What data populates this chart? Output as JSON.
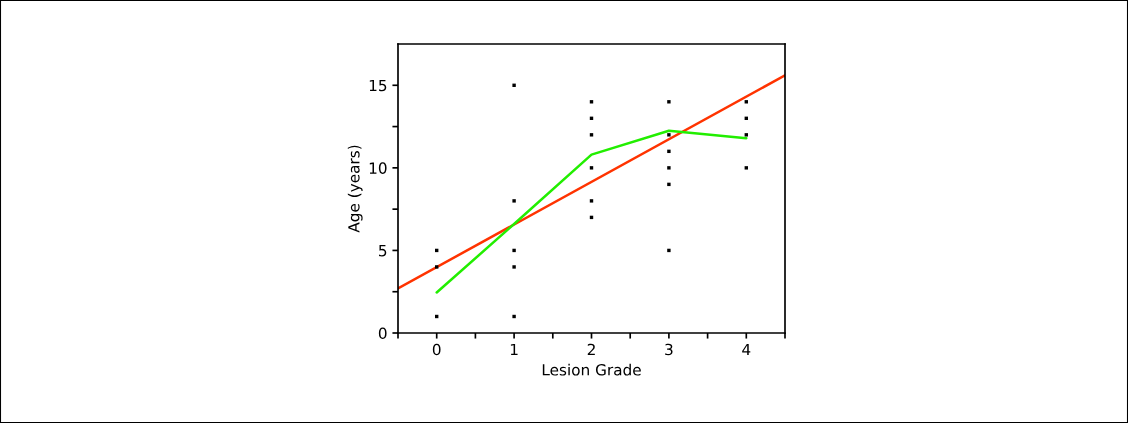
{
  "chart_data": {
    "type": "scatter",
    "xlabel": "Lesion Grade",
    "ylabel": "Age (years)",
    "xlim": [
      -0.5,
      4.5
    ],
    "ylim": [
      0,
      17.5
    ],
    "xticks": [
      {
        "value": -0.5,
        "label": null
      },
      0,
      {
        "value": 0.5,
        "label": null
      },
      1,
      {
        "value": 1.5,
        "label": null
      },
      2,
      {
        "value": 2.5,
        "label": null
      },
      3,
      {
        "value": 3.5,
        "label": null
      },
      4,
      {
        "value": 4.5,
        "label": null
      }
    ],
    "yticks": [
      0,
      {
        "value": 2.5,
        "label": null
      },
      5,
      {
        "value": 7.5,
        "label": null
      },
      10,
      {
        "value": 12.5,
        "label": null
      },
      15
    ],
    "grid": false,
    "legend": false,
    "series": [
      {
        "marker": "square",
        "color": "#000000",
        "x": [
          0,
          0,
          0,
          1,
          1,
          1,
          1,
          1,
          2,
          2,
          2,
          2,
          2,
          2,
          3,
          3,
          3,
          3,
          3,
          3,
          4,
          4,
          4,
          4
        ],
        "values": [
          5,
          4,
          1,
          15,
          8,
          5,
          4,
          1,
          14,
          13,
          12,
          10,
          8,
          7,
          14,
          12,
          11,
          10,
          9,
          5,
          14,
          13,
          12,
          10
        ]
      },
      {
        "type": "line",
        "color": "#ff3300",
        "x": [
          -0.5,
          4.5
        ],
        "values": [
          2.7,
          15.6
        ]
      },
      {
        "type": "line",
        "color": "#22ee00",
        "x": [
          0,
          1,
          2,
          3,
          4
        ],
        "values": [
          2.45,
          6.6,
          10.8,
          12.25,
          11.8
        ]
      }
    ]
  }
}
